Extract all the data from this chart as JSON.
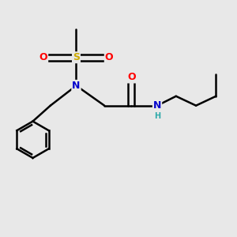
{
  "background_color": "#e8e8e8",
  "atom_colors": {
    "C": "#000000",
    "N": "#0000cc",
    "O": "#ff0000",
    "S": "#ccaa00",
    "H": "#2faaaa"
  },
  "bond_color": "#000000",
  "bond_width": 1.8,
  "figsize": [
    3.0,
    3.0
  ],
  "dpi": 100
}
